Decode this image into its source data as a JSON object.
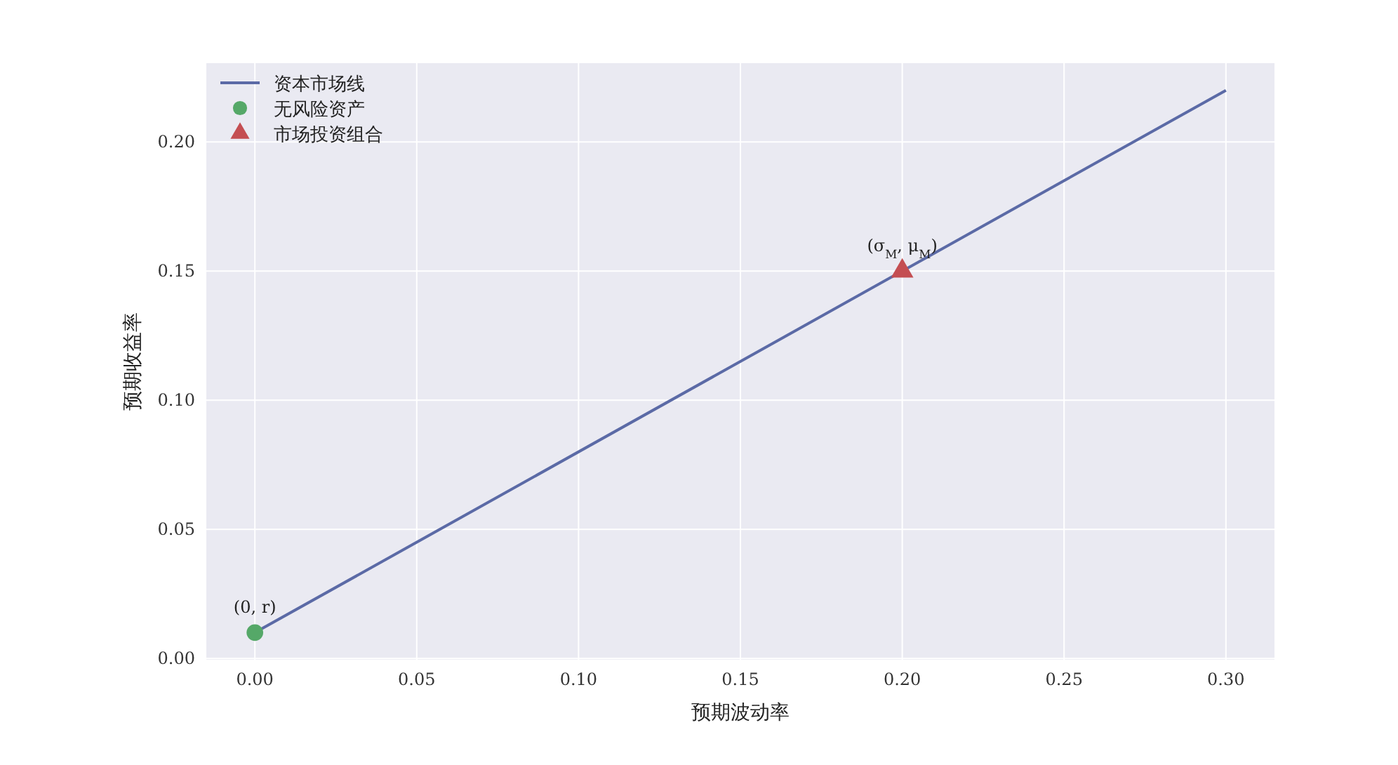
{
  "chart_data": {
    "type": "line",
    "xlabel": "预期波动率",
    "ylabel": "预期收益率",
    "xlim": [
      -0.015,
      0.315
    ],
    "ylim": [
      -0.0005,
      0.2305
    ],
    "xticks": [
      {
        "value": 0,
        "label": "0.00"
      },
      {
        "value": 0.05,
        "label": "0.05"
      },
      {
        "value": 0.1,
        "label": "0.10"
      },
      {
        "value": 0.15,
        "label": "0.15"
      },
      {
        "value": 0.2,
        "label": "0.20"
      },
      {
        "value": 0.25,
        "label": "0.25"
      },
      {
        "value": 0.3,
        "label": "0.30"
      }
    ],
    "yticks": [
      {
        "value": 0,
        "label": "0.00"
      },
      {
        "value": 0.05,
        "label": "0.05"
      },
      {
        "value": 0.1,
        "label": "0.10"
      },
      {
        "value": 0.15,
        "label": "0.15"
      },
      {
        "value": 0.2,
        "label": "0.20"
      }
    ],
    "grid": true,
    "legend": "top left",
    "series": [
      {
        "name": "资本市场线",
        "color": "#5b6aa6",
        "x": [
          0,
          0.3
        ],
        "values": [
          0.01,
          0.22
        ],
        "marker": "none",
        "line_style": "solid"
      },
      {
        "name": "无风险资产",
        "type": "scatter",
        "color": "#55a868",
        "x": [
          0
        ],
        "values": [
          0.01
        ],
        "marker": "circle"
      },
      {
        "name": "市场投资组合",
        "type": "scatter",
        "color": "#c44e52",
        "x": [
          0.2
        ],
        "values": [
          0.15
        ],
        "marker": "triangle"
      }
    ],
    "annotations": [
      {
        "text": "(0, r)",
        "x": 0,
        "y": 0.01
      },
      {
        "text": "(σ$_{M}$, μ$_{M}$)",
        "x": 0.2,
        "y": 0.15
      }
    ]
  }
}
